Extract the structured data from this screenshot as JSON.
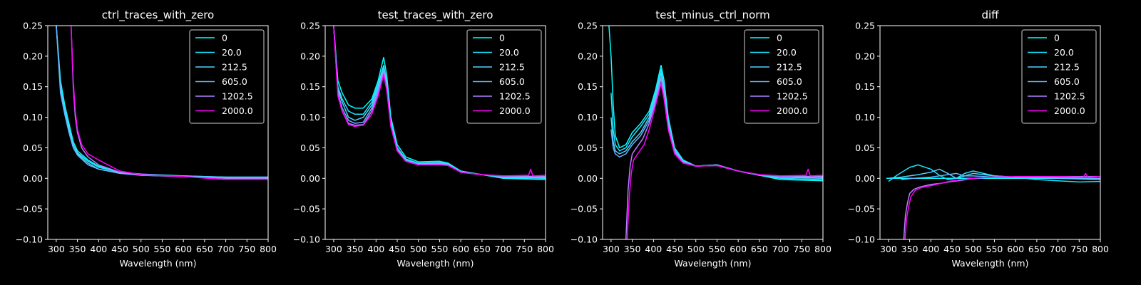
{
  "colors": {
    "background": "#000000",
    "foreground": "#ffffff",
    "series": [
      "#00ffff",
      "#1ae5ff",
      "#4dd2ff",
      "#66b3ff",
      "#b380ff",
      "#ff00ff"
    ]
  },
  "chart_data": [
    {
      "type": "line",
      "title": "ctrl_traces_with_zero",
      "xlabel": "Wavelength (nm)",
      "ylabel": "",
      "xlim": [
        280,
        800
      ],
      "ylim": [
        -0.1,
        0.25
      ],
      "xticks": [
        300,
        350,
        400,
        450,
        500,
        550,
        600,
        650,
        700,
        750,
        800
      ],
      "yticks": [
        -0.1,
        -0.05,
        0.0,
        0.05,
        0.1,
        0.15,
        0.2,
        0.25
      ],
      "ytick_labels": [
        "−0.10",
        "−0.05",
        "0.00",
        "0.05",
        "0.10",
        "0.15",
        "0.20",
        "0.25"
      ],
      "legend_position": "upper right",
      "series": [
        {
          "name": "0",
          "x": [
            300,
            310,
            320,
            330,
            340,
            350,
            375,
            400,
            450,
            500,
            600,
            700,
            800
          ],
          "y": [
            0.25,
            0.16,
            0.12,
            0.09,
            0.06,
            0.045,
            0.03,
            0.02,
            0.01,
            0.007,
            0.004,
            0.002,
            0.002
          ]
        },
        {
          "name": "20.0",
          "x": [
            300,
            310,
            320,
            330,
            340,
            350,
            375,
            400,
            450,
            500,
            600,
            700,
            800
          ],
          "y": [
            0.25,
            0.15,
            0.115,
            0.085,
            0.055,
            0.042,
            0.028,
            0.018,
            0.01,
            0.006,
            0.004,
            0.002,
            0.002
          ]
        },
        {
          "name": "212.5",
          "x": [
            300,
            310,
            320,
            330,
            340,
            350,
            375,
            400,
            450,
            500,
            600,
            700,
            800
          ],
          "y": [
            0.25,
            0.15,
            0.11,
            0.08,
            0.055,
            0.04,
            0.025,
            0.015,
            0.009,
            0.006,
            0.003,
            0.002,
            0.002
          ]
        },
        {
          "name": "605.0",
          "x": [
            300,
            310,
            320,
            330,
            340,
            350,
            375,
            400,
            450,
            500,
            600,
            700,
            800
          ],
          "y": [
            0.25,
            0.14,
            0.105,
            0.075,
            0.05,
            0.038,
            0.022,
            0.015,
            0.008,
            0.005,
            0.003,
            0.001,
            0.001
          ]
        },
        {
          "name": "1202.5",
          "x": [
            335,
            340,
            345,
            350,
            360,
            375,
            400,
            450,
            500,
            600,
            700,
            800
          ],
          "y": [
            0.25,
            0.15,
            0.1,
            0.075,
            0.05,
            0.035,
            0.022,
            0.01,
            0.005,
            0.003,
            0.0,
            0.0
          ]
        },
        {
          "name": "2000.0",
          "x": [
            335,
            340,
            345,
            350,
            360,
            375,
            400,
            450,
            500,
            600,
            700,
            800
          ],
          "y": [
            0.25,
            0.16,
            0.11,
            0.08,
            0.055,
            0.04,
            0.03,
            0.012,
            0.006,
            0.003,
            -0.002,
            -0.002
          ]
        }
      ]
    },
    {
      "type": "line",
      "title": "test_traces_with_zero",
      "xlabel": "Wavelength (nm)",
      "ylabel": "",
      "xlim": [
        280,
        800
      ],
      "ylim": [
        -0.1,
        0.25
      ],
      "xticks": [
        300,
        350,
        400,
        450,
        500,
        550,
        600,
        650,
        700,
        750,
        800
      ],
      "yticks": [
        -0.1,
        -0.05,
        0.0,
        0.05,
        0.1,
        0.15,
        0.2,
        0.25
      ],
      "ytick_labels": [
        "−0.10",
        "−0.05",
        "0.00",
        "0.05",
        "0.10",
        "0.15",
        "0.20",
        "0.25"
      ],
      "legend_position": "upper right",
      "series": [
        {
          "name": "0",
          "x": [
            300,
            310,
            320,
            335,
            350,
            370,
            390,
            405,
            418,
            425,
            435,
            450,
            470,
            500,
            550,
            570,
            600,
            650,
            700,
            800
          ],
          "y": [
            0.25,
            0.16,
            0.14,
            0.12,
            0.115,
            0.115,
            0.13,
            0.16,
            0.198,
            0.17,
            0.1,
            0.055,
            0.035,
            0.027,
            0.028,
            0.025,
            0.012,
            0.006,
            0.0,
            -0.002
          ]
        },
        {
          "name": "20.0",
          "x": [
            300,
            310,
            320,
            335,
            350,
            370,
            390,
            405,
            418,
            425,
            435,
            450,
            470,
            500,
            550,
            570,
            600,
            650,
            700,
            800
          ],
          "y": [
            0.25,
            0.15,
            0.13,
            0.11,
            0.105,
            0.105,
            0.125,
            0.155,
            0.185,
            0.16,
            0.095,
            0.05,
            0.032,
            0.025,
            0.026,
            0.024,
            0.011,
            0.006,
            0.001,
            0.0
          ]
        },
        {
          "name": "212.5",
          "x": [
            300,
            310,
            320,
            335,
            350,
            370,
            390,
            405,
            418,
            425,
            435,
            450,
            470,
            500,
            550,
            570,
            600,
            650,
            700,
            800
          ],
          "y": [
            0.25,
            0.145,
            0.125,
            0.1,
            0.095,
            0.1,
            0.12,
            0.15,
            0.182,
            0.155,
            0.09,
            0.05,
            0.03,
            0.024,
            0.025,
            0.023,
            0.01,
            0.006,
            0.002,
            0.001
          ]
        },
        {
          "name": "605.0",
          "x": [
            300,
            310,
            320,
            335,
            350,
            370,
            390,
            405,
            418,
            425,
            435,
            450,
            470,
            500,
            550,
            570,
            600,
            650,
            700,
            800
          ],
          "y": [
            0.25,
            0.14,
            0.115,
            0.095,
            0.09,
            0.092,
            0.115,
            0.145,
            0.178,
            0.15,
            0.088,
            0.048,
            0.03,
            0.023,
            0.024,
            0.022,
            0.01,
            0.006,
            0.003,
            0.002
          ]
        },
        {
          "name": "1202.5",
          "x": [
            300,
            310,
            320,
            335,
            350,
            370,
            390,
            405,
            418,
            425,
            435,
            450,
            470,
            500,
            550,
            570,
            600,
            650,
            700,
            800
          ],
          "y": [
            0.25,
            0.14,
            0.11,
            0.09,
            0.087,
            0.088,
            0.11,
            0.14,
            0.175,
            0.148,
            0.085,
            0.045,
            0.028,
            0.022,
            0.023,
            0.022,
            0.01,
            0.006,
            0.004,
            0.003
          ]
        },
        {
          "name": "2000.0",
          "x": [
            300,
            310,
            320,
            335,
            350,
            370,
            390,
            405,
            418,
            425,
            435,
            450,
            470,
            500,
            550,
            570,
            600,
            650,
            700,
            760,
            765,
            770,
            800
          ],
          "y": [
            0.25,
            0.135,
            0.11,
            0.088,
            0.085,
            0.087,
            0.105,
            0.135,
            0.17,
            0.145,
            0.085,
            0.045,
            0.028,
            0.022,
            0.022,
            0.021,
            0.01,
            0.006,
            0.004,
            0.005,
            0.015,
            0.004,
            0.005
          ]
        }
      ]
    },
    {
      "type": "line",
      "title": "test_minus_ctrl_norm",
      "xlabel": "Wavelength (nm)",
      "ylabel": "",
      "xlim": [
        280,
        800
      ],
      "ylim": [
        -0.1,
        0.25
      ],
      "xticks": [
        300,
        350,
        400,
        450,
        500,
        550,
        600,
        650,
        700,
        750,
        800
      ],
      "yticks": [
        -0.1,
        -0.05,
        0.0,
        0.05,
        0.1,
        0.15,
        0.2,
        0.25
      ],
      "ytick_labels": [
        "−0.10",
        "−0.05",
        "0.00",
        "0.05",
        "0.10",
        "0.15",
        "0.20",
        "0.25"
      ],
      "legend_position": "upper right",
      "series": [
        {
          "name": "0",
          "x": [
            295,
            300,
            305,
            310,
            320,
            335,
            350,
            370,
            390,
            405,
            418,
            425,
            435,
            450,
            470,
            500,
            550,
            600,
            650,
            700,
            800
          ],
          "y": [
            0.25,
            0.2,
            0.12,
            0.07,
            0.05,
            0.055,
            0.075,
            0.09,
            0.11,
            0.145,
            0.185,
            0.16,
            0.1,
            0.05,
            0.03,
            0.02,
            0.022,
            0.012,
            0.005,
            -0.002,
            -0.004
          ]
        },
        {
          "name": "20.0",
          "x": [
            300,
            305,
            310,
            320,
            335,
            350,
            370,
            390,
            405,
            418,
            425,
            435,
            450,
            470,
            500,
            550,
            600,
            650,
            700,
            800
          ],
          "y": [
            0.14,
            0.08,
            0.055,
            0.045,
            0.05,
            0.068,
            0.085,
            0.105,
            0.14,
            0.178,
            0.15,
            0.095,
            0.048,
            0.028,
            0.02,
            0.022,
            0.012,
            0.005,
            0.0,
            -0.002
          ]
        },
        {
          "name": "212.5",
          "x": [
            300,
            305,
            310,
            320,
            335,
            350,
            370,
            390,
            405,
            418,
            425,
            435,
            450,
            470,
            500,
            550,
            600,
            650,
            700,
            800
          ],
          "y": [
            0.1,
            0.06,
            0.045,
            0.04,
            0.045,
            0.06,
            0.075,
            0.1,
            0.135,
            0.172,
            0.145,
            0.09,
            0.045,
            0.028,
            0.02,
            0.022,
            0.012,
            0.005,
            0.002,
            0.0
          ]
        },
        {
          "name": "605.0",
          "x": [
            300,
            305,
            310,
            320,
            335,
            350,
            370,
            390,
            405,
            418,
            425,
            435,
            450,
            470,
            500,
            550,
            600,
            650,
            700,
            800
          ],
          "y": [
            0.08,
            0.05,
            0.04,
            0.035,
            0.04,
            0.055,
            0.07,
            0.095,
            0.13,
            0.165,
            0.14,
            0.088,
            0.045,
            0.027,
            0.02,
            0.021,
            0.012,
            0.005,
            0.003,
            0.002
          ]
        },
        {
          "name": "1202.5",
          "x": [
            335,
            340,
            345,
            350,
            360,
            375,
            390,
            405,
            418,
            425,
            435,
            450,
            470,
            500,
            550,
            600,
            650,
            700,
            800
          ],
          "y": [
            -0.1,
            -0.02,
            0.02,
            0.04,
            0.05,
            0.065,
            0.09,
            0.125,
            0.163,
            0.138,
            0.085,
            0.043,
            0.026,
            0.02,
            0.021,
            0.012,
            0.006,
            0.004,
            0.003
          ]
        },
        {
          "name": "2000.0",
          "x": [
            338,
            343,
            348,
            353,
            363,
            378,
            390,
            405,
            418,
            425,
            435,
            450,
            470,
            500,
            550,
            600,
            650,
            700,
            760,
            765,
            770,
            800
          ],
          "y": [
            -0.1,
            -0.03,
            0.01,
            0.03,
            0.04,
            0.055,
            0.08,
            0.12,
            0.155,
            0.13,
            0.08,
            0.04,
            0.025,
            0.02,
            0.021,
            0.012,
            0.006,
            0.004,
            0.005,
            0.015,
            0.004,
            0.005
          ]
        }
      ]
    },
    {
      "type": "line",
      "title": "diff",
      "xlabel": "Wavelength (nm)",
      "ylabel": "",
      "xlim": [
        280,
        800
      ],
      "ylim": [
        -0.1,
        0.25
      ],
      "xticks": [
        300,
        350,
        400,
        450,
        500,
        550,
        600,
        650,
        700,
        750,
        800
      ],
      "yticks": [
        -0.1,
        -0.05,
        0.0,
        0.05,
        0.1,
        0.15,
        0.2,
        0.25
      ],
      "ytick_labels": [
        "−0.10",
        "−0.05",
        "0.00",
        "0.05",
        "0.10",
        "0.15",
        "0.20",
        "0.25"
      ],
      "legend_position": "upper right",
      "series": [
        {
          "name": "0",
          "x": [
            295,
            800
          ],
          "y": [
            0.0,
            0.0
          ]
        },
        {
          "name": "20.0",
          "x": [
            300,
            320,
            350,
            370,
            400,
            420,
            440,
            460,
            480,
            500,
            550,
            600,
            650,
            700,
            750,
            800
          ],
          "y": [
            -0.005,
            0.005,
            0.018,
            0.022,
            0.015,
            0.005,
            -0.002,
            0.0,
            0.008,
            0.012,
            0.004,
            0.002,
            -0.002,
            -0.004,
            -0.006,
            -0.005
          ]
        },
        {
          "name": "212.5",
          "x": [
            300,
            330,
            370,
            400,
            420,
            440,
            460,
            480,
            500,
            550,
            600,
            700,
            800
          ],
          "y": [
            0.0,
            0.002,
            0.006,
            0.01,
            0.015,
            0.008,
            0.0,
            0.004,
            0.008,
            0.004,
            0.002,
            0.0,
            -0.002
          ]
        },
        {
          "name": "605.0",
          "x": [
            330,
            360,
            400,
            430,
            460,
            480,
            500,
            550,
            600,
            700,
            800
          ],
          "y": [
            -0.002,
            0.0,
            0.002,
            0.005,
            0.008,
            0.004,
            0.004,
            0.002,
            0.002,
            0.001,
            0.0
          ]
        },
        {
          "name": "1202.5",
          "x": [
            336,
            340,
            345,
            350,
            360,
            375,
            400,
            425,
            450,
            475,
            500,
            550,
            600,
            700,
            800
          ],
          "y": [
            -0.1,
            -0.06,
            -0.04,
            -0.025,
            -0.018,
            -0.014,
            -0.01,
            -0.008,
            -0.005,
            -0.003,
            0.0,
            0.002,
            0.002,
            0.003,
            0.003
          ]
        },
        {
          "name": "2000.0",
          "x": [
            339,
            343,
            348,
            353,
            363,
            378,
            400,
            425,
            450,
            475,
            500,
            550,
            600,
            700,
            760,
            765,
            770,
            800
          ],
          "y": [
            -0.1,
            -0.065,
            -0.045,
            -0.03,
            -0.02,
            -0.015,
            -0.012,
            -0.008,
            -0.004,
            -0.002,
            0.0,
            0.002,
            0.003,
            0.003,
            0.002,
            0.008,
            0.002,
            0.003
          ]
        }
      ]
    }
  ]
}
